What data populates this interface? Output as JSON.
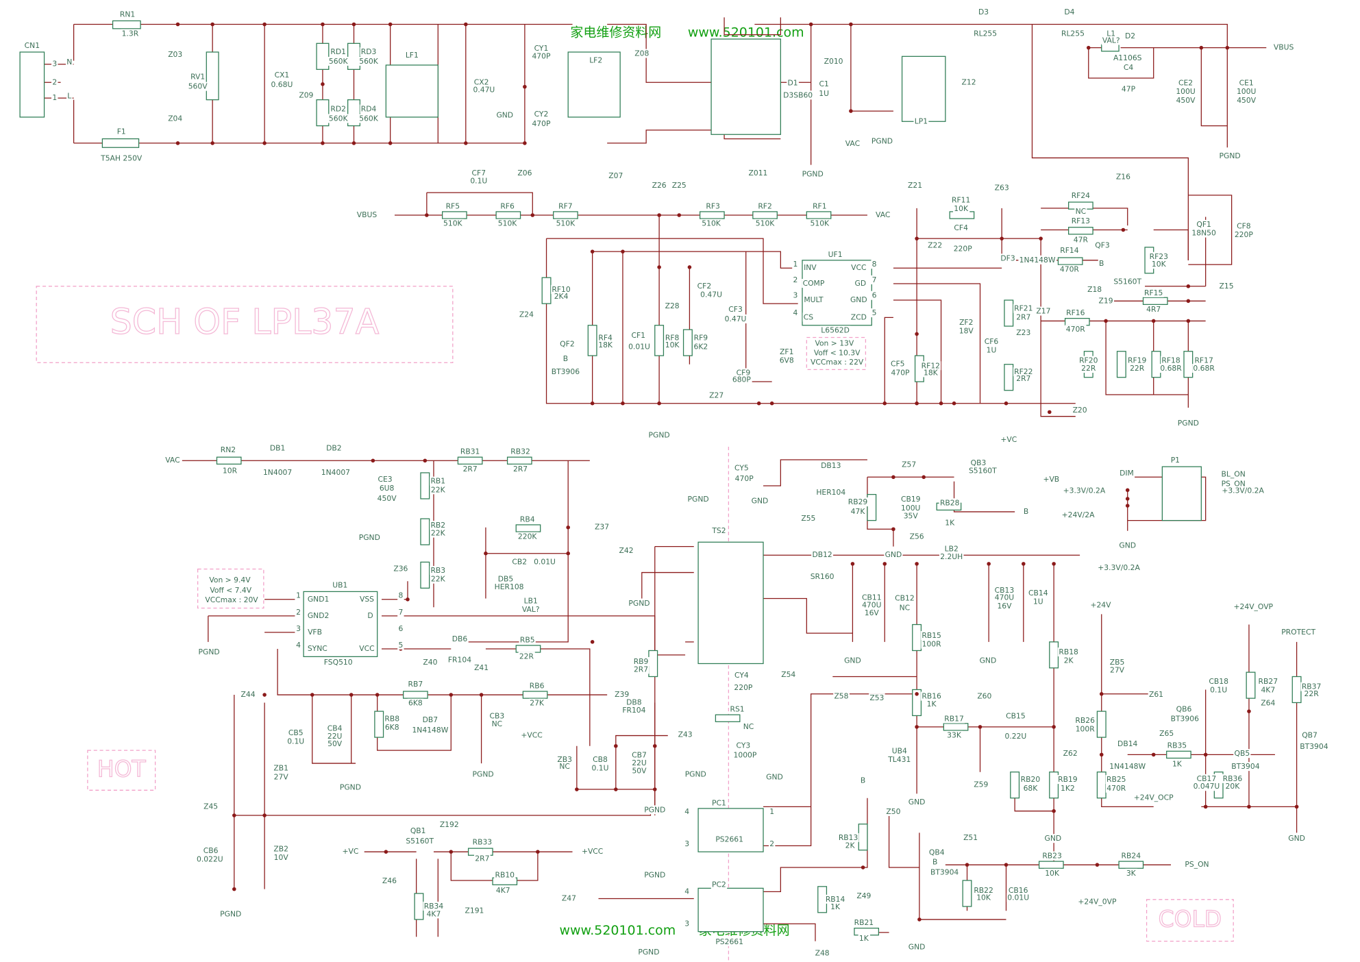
{
  "title": "SCH OF LPL37A",
  "hot": "HOT",
  "cold": "COLD",
  "watermark_top": [
    "家电维修资料网",
    "www.520101.com"
  ],
  "watermark_bottom": [
    "www.520101.com",
    "家电维修资料网"
  ],
  "labels": {
    "mains": [
      "CN1",
      "3",
      "N",
      "2",
      "1",
      "L",
      "RN1",
      "1.3R",
      "Z03",
      "Z04",
      "F1",
      "T5AH 250V",
      "RV1",
      "560V",
      "CX1",
      "0.68U",
      "Z09",
      "RD1",
      "560K",
      "RD3",
      "560K",
      "RD2",
      "560K",
      "RD4",
      "560K",
      "LF1",
      "CX2",
      "0.47U",
      "CY1",
      "470P",
      "GND",
      "CY2",
      "470P",
      "Z06",
      "LF2",
      "Z08",
      "Z07",
      "D1",
      "D3SB60",
      "Z011",
      "C1",
      "1U",
      "Z010",
      "PGND"
    ],
    "bulk": [
      "D3",
      "RL255",
      "D4",
      "RL255",
      "VAC",
      "PGND",
      "LP1",
      "Z12",
      "L1",
      "VAL?",
      "D2",
      "A1106S",
      "C4",
      "47P",
      "CE2",
      "100U",
      "450V",
      "CE1",
      "100U",
      "450V",
      "VBUS",
      "PGND"
    ],
    "pfc_divider": [
      "VBUS",
      "CF7",
      "0.1U",
      "RF5",
      "510K",
      "RF6",
      "510K",
      "RF7",
      "510K",
      "Z26",
      "Z25",
      "RF3",
      "510K",
      "RF2",
      "510K",
      "RF1",
      "510K",
      "VAC"
    ],
    "pfc_ctrl": [
      "Z21",
      "RF11",
      "10K",
      "Z63",
      "CF4",
      "220P",
      "Z22",
      "RF10",
      "2K4",
      "Z24",
      "QF2",
      "B",
      "BT3906",
      "RF4",
      "18K",
      "CF1",
      "0.01U",
      "RF8",
      "10K",
      "CF2",
      "0.47U",
      "Z28",
      "CF3",
      "0.47U",
      "RF9",
      "6K2",
      "CF9",
      "680P",
      "Z27"
    ],
    "pfc_ic": [
      "UF1",
      "INV",
      "COMP",
      "MULT",
      "CS",
      "VCC",
      "GD",
      "GND",
      "ZCD",
      "1",
      "2",
      "3",
      "4",
      "8",
      "7",
      "6",
      "5",
      "L6562D",
      "Von > 13V",
      "Voff < 10.3V",
      "VCCmax : 22V",
      "ZF1",
      "6V8",
      "PGND"
    ],
    "pfc_vcc": [
      "CF5",
      "470P",
      "RF12",
      "18K",
      "ZF2",
      "18V",
      "CF6",
      "1U",
      "DF3",
      "1N4148W",
      "RF21",
      "2R7",
      "Z23",
      "RF22",
      "2R7",
      "+VC",
      "Z20"
    ],
    "pfc_drive": [
      "RF24",
      "NC",
      "RF13",
      "47R",
      "RF14",
      "470R",
      "QF3",
      "B",
      "S5160T",
      "Z16",
      "RF23",
      "10K",
      "Z18",
      "Z19",
      "Z17",
      "RF15",
      "4R7",
      "RF16",
      "470R",
      "RF20",
      "22R",
      "RF19",
      "22R",
      "RF18",
      "0.68R",
      "RF17",
      "0.68R",
      "PGND",
      "QF1",
      "18N50",
      "CF8",
      "220P",
      "Z15"
    ],
    "sb_input": [
      "VAC",
      "RN2",
      "10R",
      "DB1",
      "1N4007",
      "DB2",
      "1N4007",
      "CE3",
      "6U8",
      "450V",
      "PGND",
      "RB31",
      "2R7",
      "RB32",
      "2R7",
      "RB1",
      "22K",
      "RB2",
      "22K",
      "RB3",
      "22K",
      "RB4",
      "220K",
      "CB2",
      "0.01U",
      "Z37",
      "DB5",
      "HER108",
      "LB1",
      "VAL?"
    ],
    "sb_ic": [
      "Von > 9.4V",
      "Voff < 7.4V",
      "VCCmax : 20V",
      "UB1",
      "GND1",
      "GND2",
      "VFB",
      "SYNC",
      "VSS",
      "D",
      "VCC",
      "FSQ510",
      "1",
      "2",
      "3",
      "4",
      "8",
      "7",
      "6",
      "5",
      "Z36",
      "PGND"
    ],
    "sb_aux": [
      "DB6",
      "FR104",
      "RB5",
      "22R",
      "Z40",
      "Z44",
      "RB7",
      "6K8",
      "Z41",
      "RB6",
      "27K",
      "Z39",
      "CB5",
      "0.1U",
      "CB4",
      "22U",
      "50V",
      "PGND",
      "RB8",
      "6K8",
      "DB7",
      "1N4148W",
      "CB3",
      "NC",
      "PGND",
      "ZB1",
      "27V",
      "Z45",
      "CB6",
      "0.022U",
      "ZB2",
      "10V",
      "PGND"
    ],
    "sb_trafo": [
      "+VCC",
      "ZB3",
      "NC",
      "CB8",
      "0.1U",
      "CB7",
      "22U",
      "50V",
      "PGND",
      "Z43",
      "RB9",
      "2R7",
      "DB8",
      "FR104",
      "Z42",
      "TS2",
      "PGND",
      "CY5",
      "470P",
      "PGND",
      "GND",
      "CY4",
      "220P",
      "RS1",
      "NC",
      "CY3",
      "1000P",
      "GND",
      "PGND",
      "Z55",
      "Z54"
    ],
    "secondary": [
      "DB13",
      "HER104",
      "Z57",
      "QB3",
      "S5160T",
      "+VB",
      "RB29",
      "47K",
      "CB19",
      "100U",
      "35V",
      "RB28",
      "1K",
      "B",
      "GND",
      "DB12",
      "SR160",
      "Z56",
      "LB2",
      "2.2UH",
      "+3.3V/0.2A",
      "CB11",
      "470U",
      "16V",
      "CB12",
      "NC",
      "GND",
      "CB13",
      "470U",
      "16V",
      "CB14",
      "1U",
      "GND"
    ],
    "feedback": [
      "RB15",
      "100R",
      "RB16",
      "1K",
      "Z58",
      "Z53",
      "Z60",
      "RB17",
      "33K",
      "CB15",
      "0.22U",
      "UB4",
      "TL431",
      "GND",
      "Z59",
      "RB20",
      "68K",
      "RB19",
      "1K2",
      "Z62",
      "GND",
      "RB18",
      "2K"
    ],
    "connector": [
      "P1",
      "DIM",
      "BL_ON",
      "PS_ON",
      "+3.3V/0.2A",
      "+3.3V/0.2A",
      "+24V/2A",
      "GND"
    ],
    "protect": [
      "+24V",
      "ZB5",
      "27V",
      "Z61",
      "RB26",
      "100R",
      "DB14",
      "1N4148W",
      "Z65",
      "RB35",
      "1K",
      "RB25",
      "470R",
      "+24V_OCP",
      "+24V_OVP",
      "CB18",
      "0.1U",
      "RB27",
      "4K7",
      "QB6",
      "BT3906",
      "Z64",
      "QB5",
      "BT3904",
      "CB17",
      "0.047U",
      "RB36",
      "20K",
      "PROTECT",
      "RB37",
      "22R",
      "QB7",
      "BT3904",
      "GND"
    ],
    "opto": [
      "PC1",
      "PS2661",
      "4",
      "3",
      "1",
      "2",
      "PC2",
      "PS2661",
      "4",
      "3",
      "PGND",
      "Z47",
      "PGND",
      "B",
      "RB13",
      "2K",
      "Z49",
      "RB14",
      "1K",
      "RB21",
      "1K",
      "Z48",
      "Z50",
      "QB4",
      "B",
      "BT3904",
      "Z51",
      "RB23",
      "10K",
      "RB24",
      "3K",
      "PS_ON",
      "+24V_0VP",
      "RB22",
      "10K",
      "CB16",
      "0.01U",
      "GND"
    ],
    "switch": [
      "QB1",
      "S5160T",
      "Z192",
      "RB33",
      "2R7",
      "RB10",
      "4K7",
      "+VC",
      "+VCC",
      "Z46",
      "Z191",
      "RB34",
      "4K7"
    ]
  }
}
